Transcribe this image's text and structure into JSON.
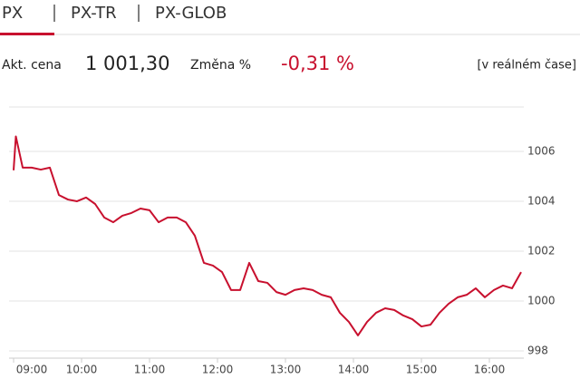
{
  "tabs": [
    "PX",
    "PX-TR",
    "PX-GLOB"
  ],
  "quote": {
    "price_label": "Akt. cena",
    "price": "1 001,30",
    "change_label": "Změna %",
    "change": "-0,31 %",
    "realtime": "[v reálném čase]"
  },
  "chart_data": {
    "type": "line",
    "color": "#c8102e",
    "x": [
      540,
      542,
      548,
      556,
      564,
      572,
      580,
      588,
      596,
      604,
      612,
      620,
      628,
      636,
      644,
      652,
      660,
      668,
      676,
      684,
      692,
      700,
      708,
      716,
      724,
      732,
      740,
      748,
      756,
      764,
      772,
      780,
      788,
      796,
      804,
      812,
      820,
      828,
      836,
      844,
      852,
      860,
      868,
      876,
      884,
      892,
      900,
      908,
      916,
      924,
      932,
      940,
      948,
      956,
      964,
      972,
      980,
      988
    ],
    "values": [
      1005.24,
      1006.6,
      1005.35,
      1005.35,
      1005.27,
      1005.35,
      1004.25,
      1004.07,
      1004.0,
      1004.15,
      1003.89,
      1003.35,
      1003.16,
      1003.42,
      1003.53,
      1003.71,
      1003.64,
      1003.16,
      1003.35,
      1003.35,
      1003.16,
      1002.62,
      1001.53,
      1001.42,
      1001.16,
      1000.44,
      1000.44,
      1001.53,
      1000.8,
      1000.73,
      1000.36,
      1000.25,
      1000.44,
      1000.51,
      1000.44,
      1000.25,
      1000.15,
      999.53,
      999.16,
      998.62,
      999.16,
      999.53,
      999.71,
      999.64,
      999.42,
      999.27,
      998.98,
      999.05,
      999.53,
      999.89,
      1000.15,
      1000.25,
      1000.51,
      1000.15,
      1000.44,
      1000.62,
      1000.51,
      1001.16
    ],
    "xlim": [
      540,
      990
    ],
    "xticks": [
      {
        "value": 540,
        "label": "09:00"
      },
      {
        "value": 600,
        "label": "10:00"
      },
      {
        "value": 660,
        "label": "11:00"
      },
      {
        "value": 720,
        "label": "12:00"
      },
      {
        "value": 780,
        "label": "13:00"
      },
      {
        "value": 840,
        "label": "14:00"
      },
      {
        "value": 900,
        "label": "15:00"
      },
      {
        "value": 960,
        "label": "16:00"
      }
    ],
    "ylim": [
      997.71,
      1007.78
    ],
    "yticks": [
      998,
      1000,
      1002,
      1004,
      1006
    ],
    "grid": true
  }
}
